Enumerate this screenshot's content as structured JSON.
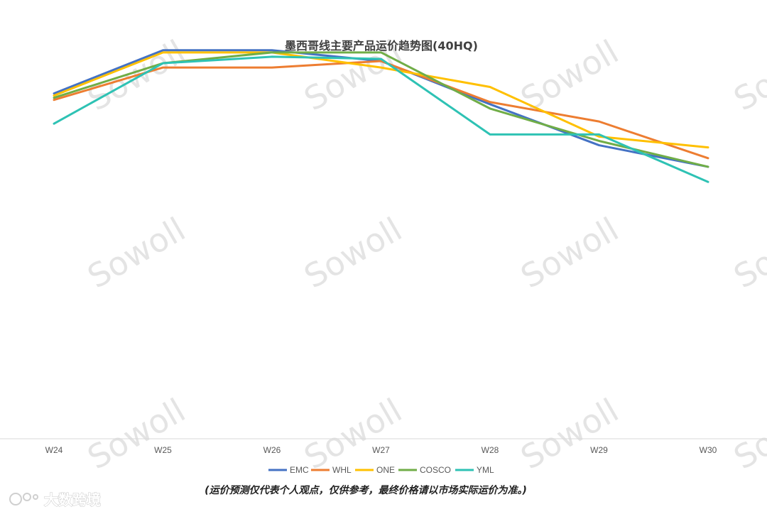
{
  "chart_data": {
    "type": "line",
    "title": "墨西哥线主要产品运价趋势图(40HQ)",
    "categories": [
      "W24",
      "W25",
      "W26",
      "W27",
      "W28",
      "W29",
      "W30"
    ],
    "ylim": [
      0,
      100
    ],
    "grid": false,
    "legend_position": "bottom",
    "series": [
      {
        "name": "EMC",
        "color": "#4472C4",
        "values": [
          80.0,
          90.0,
          90.0,
          87.5,
          77.5,
          68.0,
          63.0
        ]
      },
      {
        "name": "WHL",
        "color": "#ED7D31",
        "values": [
          78.5,
          86.0,
          86.0,
          87.5,
          78.0,
          73.5,
          65.0
        ]
      },
      {
        "name": "ONE",
        "color": "#FFC000",
        "values": [
          79.5,
          89.5,
          89.5,
          86.0,
          81.5,
          70.0,
          67.5
        ]
      },
      {
        "name": "COSCO",
        "color": "#70AD47",
        "values": [
          79.0,
          87.0,
          89.5,
          89.5,
          76.5,
          69.0,
          63.0
        ]
      },
      {
        "name": "YML",
        "color": "#2EC2B4",
        "values": [
          73.0,
          87.0,
          88.5,
          88.0,
          70.5,
          70.5,
          59.5
        ]
      }
    ]
  },
  "footnote": "(运价预测仅代表个人观点，仅供参考，最终价格请以市场实际运价为准。)",
  "watermark": "Sowoll",
  "brand": "大数跨境",
  "colors": {
    "axis": "#d9d9d9",
    "text": "#595959"
  }
}
